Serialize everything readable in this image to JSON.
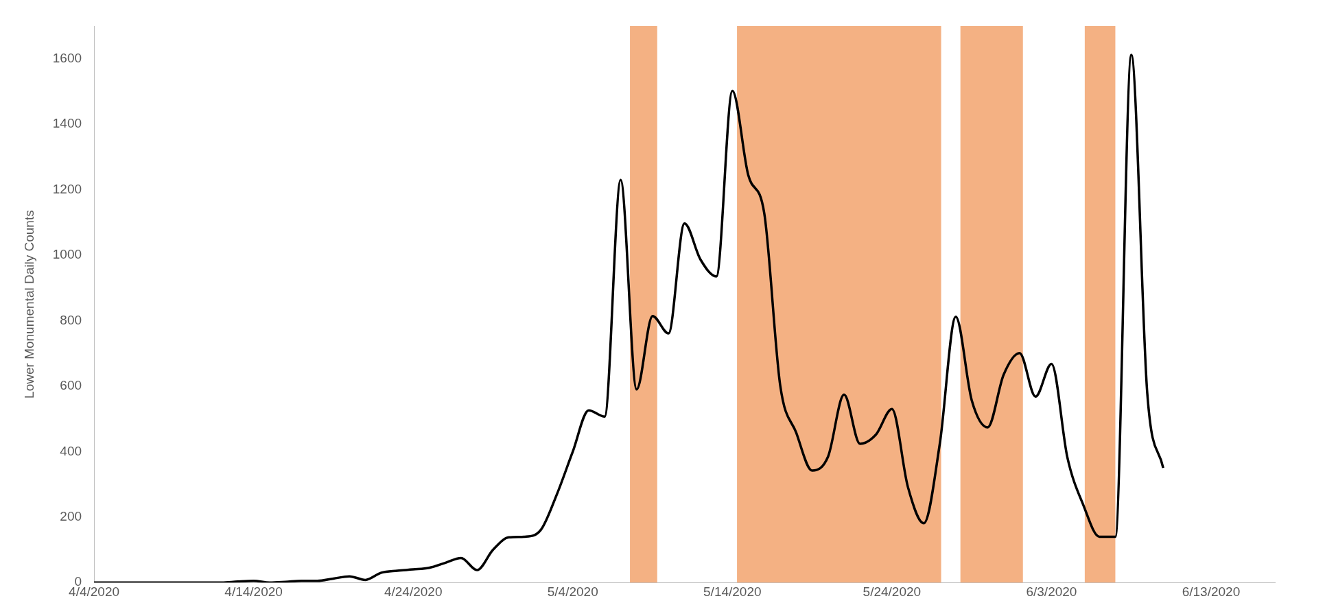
{
  "chart_data": {
    "type": "line",
    "ylabel": "Lower Monumental Daily Counts",
    "x": [
      "2020-04-04",
      "2020-04-05",
      "2020-04-06",
      "2020-04-07",
      "2020-04-08",
      "2020-04-09",
      "2020-04-10",
      "2020-04-11",
      "2020-04-12",
      "2020-04-13",
      "2020-04-14",
      "2020-04-15",
      "2020-04-16",
      "2020-04-17",
      "2020-04-18",
      "2020-04-19",
      "2020-04-20",
      "2020-04-21",
      "2020-04-22",
      "2020-04-23",
      "2020-04-24",
      "2020-04-25",
      "2020-04-26",
      "2020-04-27",
      "2020-04-28",
      "2020-04-29",
      "2020-04-30",
      "2020-05-01",
      "2020-05-02",
      "2020-05-03",
      "2020-05-04",
      "2020-05-05",
      "2020-05-06",
      "2020-05-07",
      "2020-05-08",
      "2020-05-09",
      "2020-05-10",
      "2020-05-11",
      "2020-05-12",
      "2020-05-13",
      "2020-05-14",
      "2020-05-15",
      "2020-05-16",
      "2020-05-17",
      "2020-05-18",
      "2020-05-19",
      "2020-05-20",
      "2020-05-21",
      "2020-05-22",
      "2020-05-23",
      "2020-05-24",
      "2020-05-25",
      "2020-05-26",
      "2020-05-27",
      "2020-05-28",
      "2020-05-29",
      "2020-05-30",
      "2020-05-31",
      "2020-06-01",
      "2020-06-02",
      "2020-06-03",
      "2020-06-04",
      "2020-06-05",
      "2020-06-06",
      "2020-06-07",
      "2020-06-08",
      "2020-06-09",
      "2020-06-10"
    ],
    "series": [
      {
        "color": "#000000",
        "values": [
          0,
          0,
          0,
          0,
          0,
          0,
          0,
          0,
          0,
          3,
          5,
          0,
          2,
          5,
          5,
          12,
          19,
          8,
          30,
          36,
          40,
          45,
          60,
          75,
          38,
          100,
          138,
          140,
          161,
          269,
          400,
          526,
          507,
          1230,
          590,
          814,
          761,
          1097,
          987,
          935,
          1502,
          1244,
          1128,
          602,
          458,
          342,
          385,
          574,
          424,
          452,
          530,
          292,
          181,
          424,
          812,
          557,
          474,
          635,
          701,
          568,
          668,
          381,
          236,
          140,
          140,
          1612,
          579,
          350
        ]
      }
    ],
    "xlim": [
      "2020-04-04",
      "2020-06-17"
    ],
    "xticks": [
      {
        "value": "2020-04-04",
        "label": "4/4/2020"
      },
      {
        "value": "2020-04-14",
        "label": "4/14/2020"
      },
      {
        "value": "2020-04-24",
        "label": "4/24/2020"
      },
      {
        "value": "2020-05-04",
        "label": "5/4/2020"
      },
      {
        "value": "2020-05-14",
        "label": "5/14/2020"
      },
      {
        "value": "2020-05-24",
        "label": "5/24/2020"
      },
      {
        "value": "2020-06-03",
        "label": "6/3/2020"
      },
      {
        "value": "2020-06-13",
        "label": "6/13/2020"
      }
    ],
    "ylim": [
      0,
      1700
    ],
    "yticks": [
      0,
      200,
      400,
      600,
      800,
      1000,
      1200,
      1400,
      1600
    ],
    "bands": [
      {
        "axis": "x",
        "from": "2020-05-07T14:00",
        "to": "2020-05-09T07:00",
        "color": "#f4b183"
      },
      {
        "axis": "x",
        "from": "2020-05-14T07:00",
        "to": "2020-05-27T02:00",
        "color": "#f4b183"
      },
      {
        "axis": "x",
        "from": "2020-05-28T07:00",
        "to": "2020-06-01T05:00",
        "color": "#f4b183"
      },
      {
        "axis": "x",
        "from": "2020-06-05T02:00",
        "to": "2020-06-07T00:00",
        "color": "#f4b183"
      }
    ],
    "grid": false,
    "legend": false,
    "marker": "none",
    "line_style": "solid"
  }
}
